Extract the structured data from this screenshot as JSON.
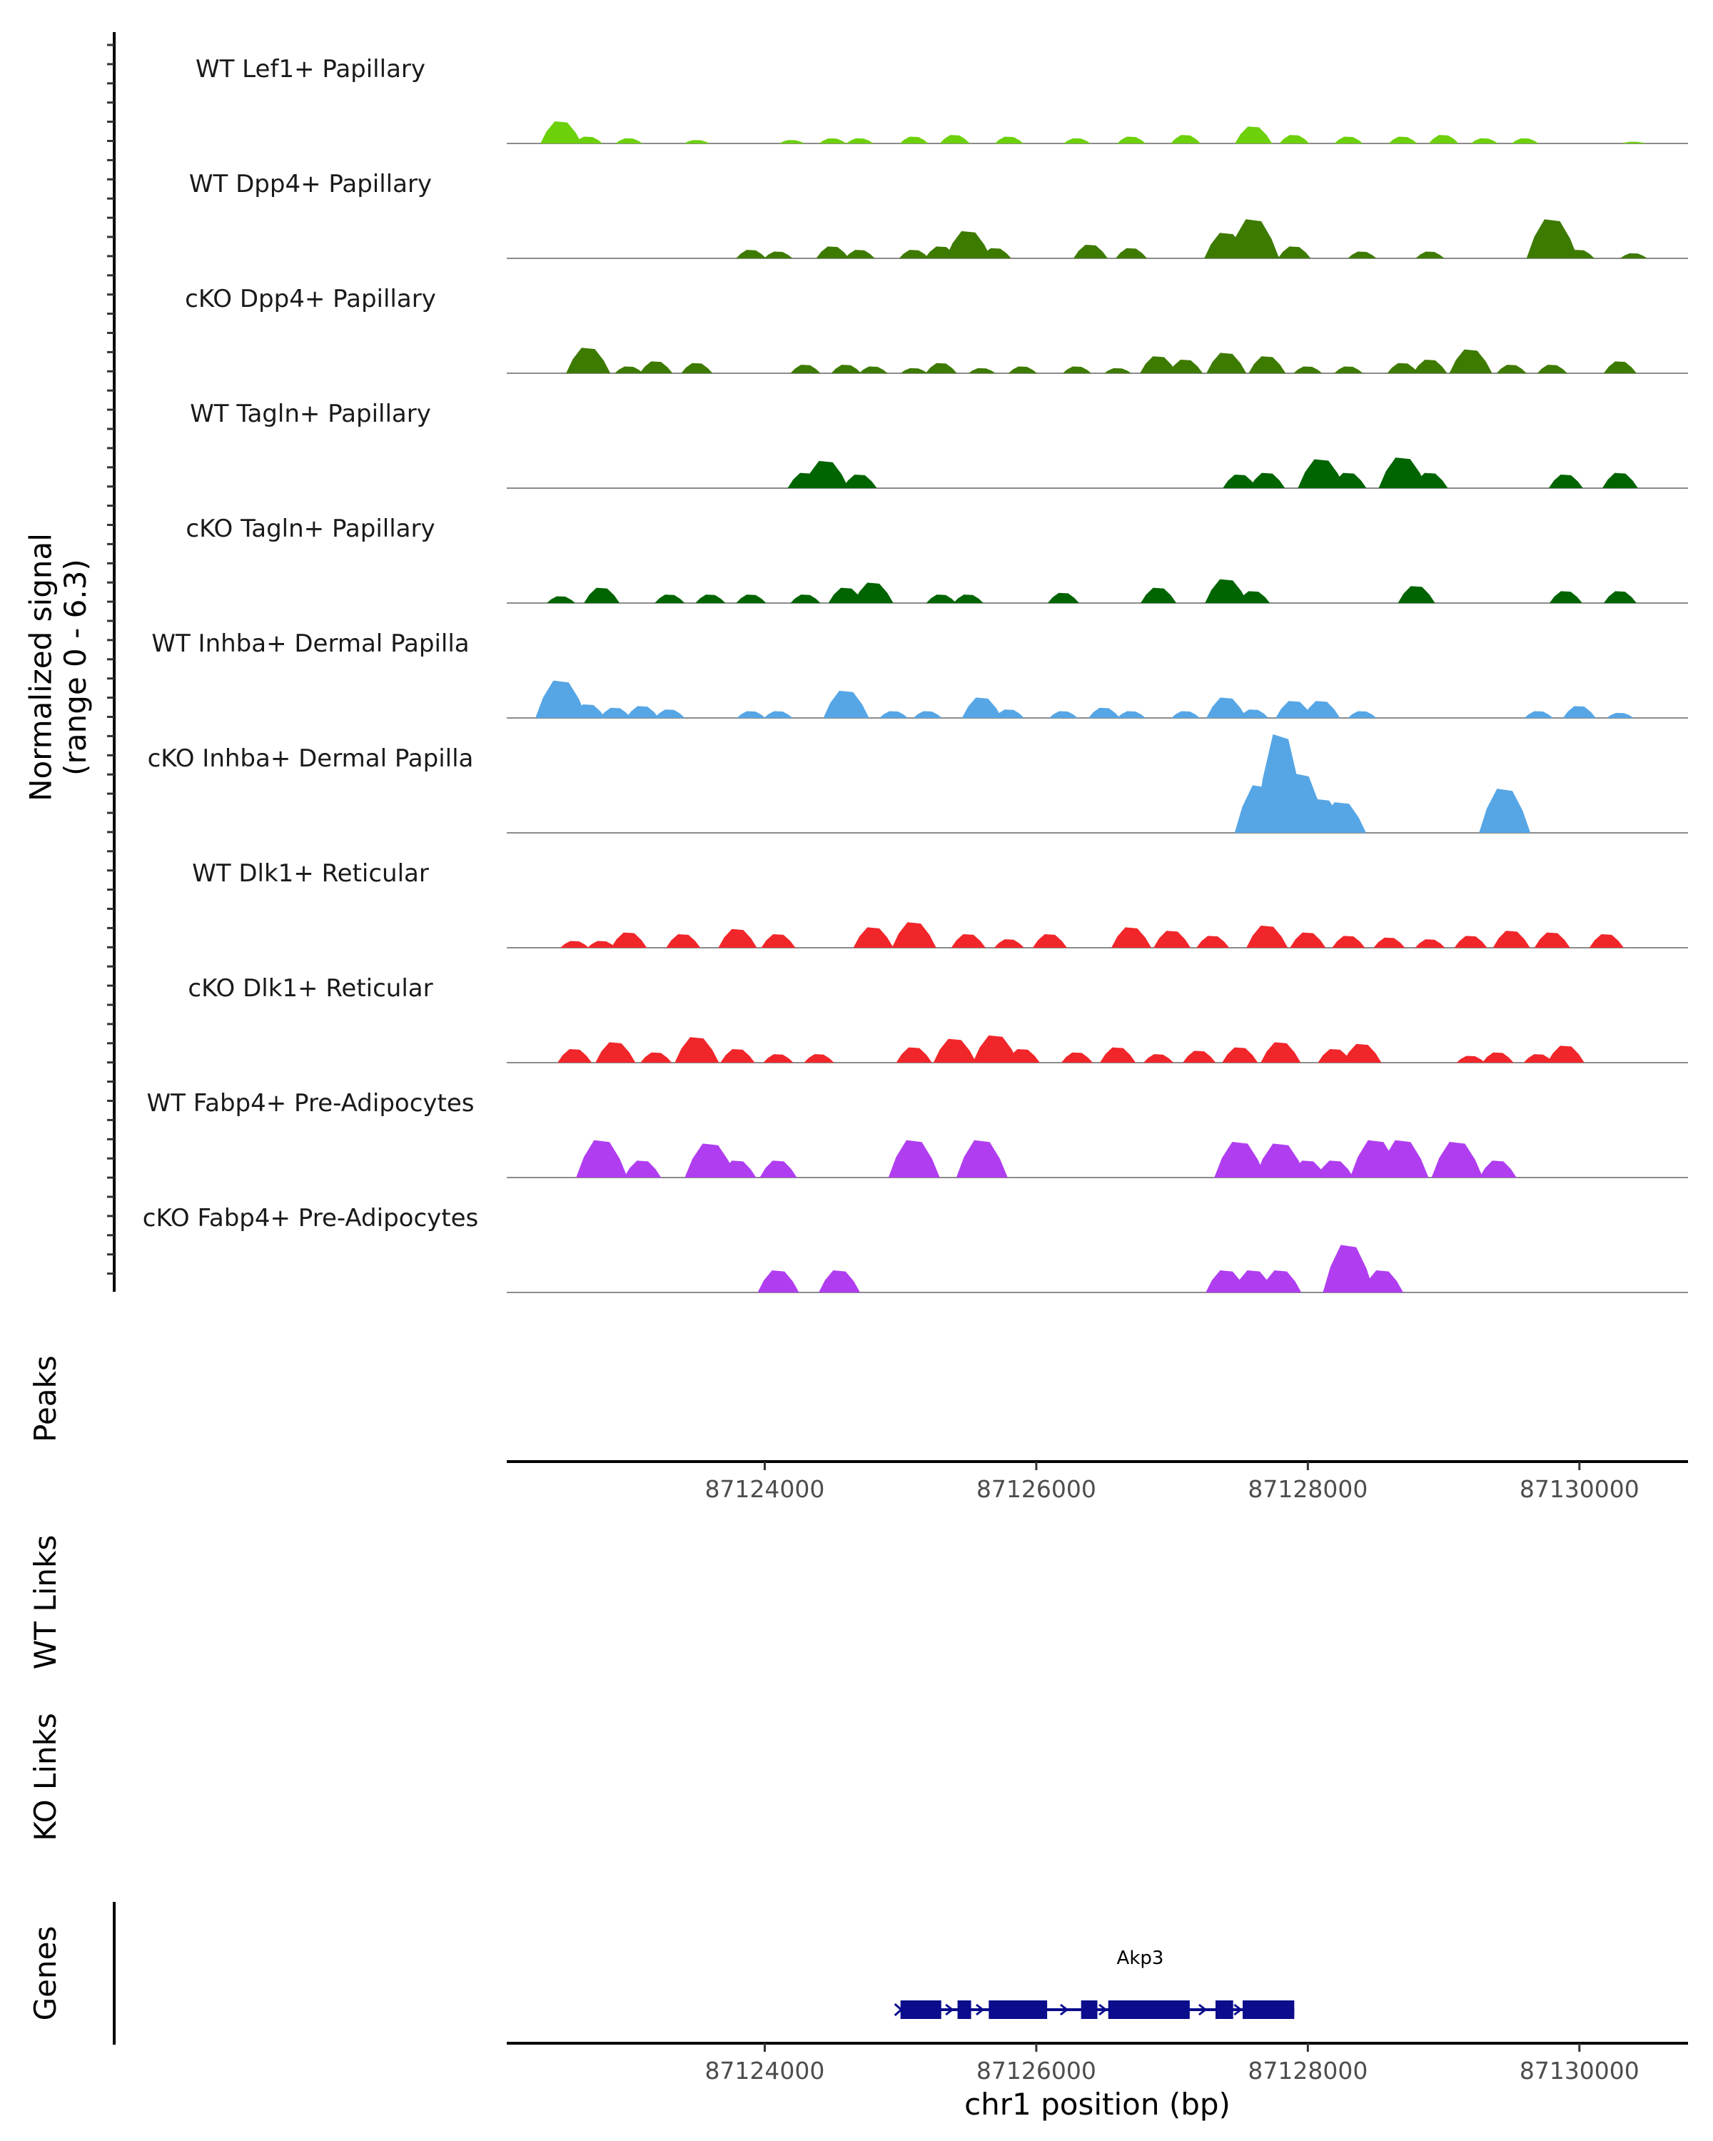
{
  "chart_data": {
    "type": "area",
    "title": "",
    "xlabel": "chr1 position (bp)",
    "ylabel": "Normalized signal\n(range 0 - 6.3)",
    "ylim": [
      0,
      6.3
    ],
    "xlim": [
      87122100,
      87130800
    ],
    "xticks": [
      87124000,
      87126000,
      87128000,
      87130000
    ],
    "tick_labels": [
      "87124000",
      "87126000",
      "87128000",
      "87130000"
    ],
    "tracks": [
      {
        "name": "WT Lef1+ Papillary",
        "color": "#6cd00a",
        "peaks": [
          [
            87122500,
            1.3
          ],
          [
            87122700,
            0.4
          ],
          [
            87123000,
            0.3
          ],
          [
            87123500,
            0.2
          ],
          [
            87124200,
            0.2
          ],
          [
            87124500,
            0.3
          ],
          [
            87124700,
            0.3
          ],
          [
            87125100,
            0.4
          ],
          [
            87125400,
            0.5
          ],
          [
            87125800,
            0.4
          ],
          [
            87126300,
            0.3
          ],
          [
            87126700,
            0.4
          ],
          [
            87127100,
            0.5
          ],
          [
            87127600,
            1.0
          ],
          [
            87127900,
            0.5
          ],
          [
            87128300,
            0.4
          ],
          [
            87128700,
            0.4
          ],
          [
            87129000,
            0.5
          ],
          [
            87129300,
            0.3
          ],
          [
            87129600,
            0.3
          ],
          [
            87130400,
            0.1
          ]
        ]
      },
      {
        "name": "WT Dpp4+ Papillary",
        "color": "#3d7a00",
        "peaks": [
          [
            87123900,
            0.5
          ],
          [
            87124100,
            0.4
          ],
          [
            87124500,
            0.7
          ],
          [
            87124700,
            0.5
          ],
          [
            87125100,
            0.5
          ],
          [
            87125300,
            0.7
          ],
          [
            87125500,
            1.6
          ],
          [
            87125700,
            0.6
          ],
          [
            87126400,
            0.8
          ],
          [
            87126700,
            0.6
          ],
          [
            87127400,
            1.5
          ],
          [
            87127600,
            2.3
          ],
          [
            87127900,
            0.7
          ],
          [
            87128400,
            0.4
          ],
          [
            87128900,
            0.4
          ],
          [
            87129800,
            2.3
          ],
          [
            87130000,
            0.5
          ],
          [
            87130400,
            0.3
          ]
        ]
      },
      {
        "name": "cKO Dpp4+ Papillary",
        "color": "#3d7a00",
        "peaks": [
          [
            87122700,
            1.5
          ],
          [
            87123000,
            0.4
          ],
          [
            87123200,
            0.7
          ],
          [
            87123500,
            0.6
          ],
          [
            87124300,
            0.5
          ],
          [
            87124600,
            0.5
          ],
          [
            87124800,
            0.4
          ],
          [
            87125100,
            0.3
          ],
          [
            87125300,
            0.6
          ],
          [
            87125600,
            0.3
          ],
          [
            87125900,
            0.4
          ],
          [
            87126300,
            0.4
          ],
          [
            87126600,
            0.3
          ],
          [
            87126900,
            1.0
          ],
          [
            87127100,
            0.8
          ],
          [
            87127400,
            1.2
          ],
          [
            87127700,
            1.0
          ],
          [
            87128000,
            0.4
          ],
          [
            87128300,
            0.4
          ],
          [
            87128700,
            0.6
          ],
          [
            87128900,
            0.8
          ],
          [
            87129200,
            1.4
          ],
          [
            87129500,
            0.5
          ],
          [
            87129800,
            0.5
          ],
          [
            87130300,
            0.7
          ]
        ]
      },
      {
        "name": "WT Tagln+ Papillary",
        "color": "#006400",
        "peaks": [
          [
            87124300,
            0.9
          ],
          [
            87124450,
            1.6
          ],
          [
            87124700,
            0.8
          ],
          [
            87127500,
            0.8
          ],
          [
            87127700,
            0.9
          ],
          [
            87128100,
            1.7
          ],
          [
            87128300,
            0.9
          ],
          [
            87128700,
            1.8
          ],
          [
            87128900,
            0.9
          ],
          [
            87129900,
            0.8
          ],
          [
            87130300,
            0.9
          ]
        ]
      },
      {
        "name": "cKO Tagln+ Papillary",
        "color": "#006400",
        "peaks": [
          [
            87122500,
            0.4
          ],
          [
            87122800,
            0.9
          ],
          [
            87123300,
            0.5
          ],
          [
            87123600,
            0.5
          ],
          [
            87123900,
            0.5
          ],
          [
            87124300,
            0.5
          ],
          [
            87124600,
            0.9
          ],
          [
            87124800,
            1.2
          ],
          [
            87125300,
            0.5
          ],
          [
            87125500,
            0.5
          ],
          [
            87126200,
            0.6
          ],
          [
            87126900,
            0.9
          ],
          [
            87127400,
            1.4
          ],
          [
            87127600,
            0.7
          ],
          [
            87128800,
            1.0
          ],
          [
            87129900,
            0.7
          ],
          [
            87130300,
            0.7
          ]
        ]
      },
      {
        "name": "WT Inhba+ Dermal Papilla",
        "color": "#56a6e6",
        "peaks": [
          [
            87122500,
            2.2
          ],
          [
            87122700,
            0.8
          ],
          [
            87122900,
            0.6
          ],
          [
            87123100,
            0.7
          ],
          [
            87123300,
            0.5
          ],
          [
            87123900,
            0.4
          ],
          [
            87124100,
            0.4
          ],
          [
            87124600,
            1.6
          ],
          [
            87124950,
            0.4
          ],
          [
            87125200,
            0.4
          ],
          [
            87125600,
            1.2
          ],
          [
            87125800,
            0.5
          ],
          [
            87126200,
            0.4
          ],
          [
            87126500,
            0.6
          ],
          [
            87126700,
            0.4
          ],
          [
            87127100,
            0.4
          ],
          [
            87127400,
            1.2
          ],
          [
            87127600,
            0.5
          ],
          [
            87127900,
            1.0
          ],
          [
            87128100,
            1.0
          ],
          [
            87128400,
            0.4
          ],
          [
            87129700,
            0.4
          ],
          [
            87130000,
            0.7
          ],
          [
            87130300,
            0.3
          ]
        ]
      },
      {
        "name": "cKO Inhba+ Dermal Papilla",
        "color": "#56a6e6",
        "peaks": [
          [
            87127650,
            2.8
          ],
          [
            87127800,
            5.8
          ],
          [
            87127950,
            3.5
          ],
          [
            87128100,
            2.0
          ],
          [
            87128250,
            1.8
          ],
          [
            87129450,
            2.6
          ]
        ]
      },
      {
        "name": "WT Dlk1+ Reticular",
        "color": "#f0262a",
        "peaks": [
          [
            87122600,
            0.4
          ],
          [
            87122800,
            0.4
          ],
          [
            87123000,
            0.9
          ],
          [
            87123400,
            0.8
          ],
          [
            87123800,
            1.1
          ],
          [
            87124100,
            0.8
          ],
          [
            87124800,
            1.2
          ],
          [
            87125100,
            1.5
          ],
          [
            87125500,
            0.8
          ],
          [
            87125800,
            0.5
          ],
          [
            87126100,
            0.8
          ],
          [
            87126700,
            1.2
          ],
          [
            87127000,
            1.0
          ],
          [
            87127300,
            0.7
          ],
          [
            87127700,
            1.3
          ],
          [
            87128000,
            0.9
          ],
          [
            87128300,
            0.7
          ],
          [
            87128600,
            0.6
          ],
          [
            87128900,
            0.5
          ],
          [
            87129200,
            0.7
          ],
          [
            87129500,
            1.0
          ],
          [
            87129800,
            0.9
          ],
          [
            87130200,
            0.8
          ]
        ]
      },
      {
        "name": "cKO Dlk1+ Reticular",
        "color": "#f0262a",
        "peaks": [
          [
            87122600,
            0.8
          ],
          [
            87122900,
            1.2
          ],
          [
            87123200,
            0.6
          ],
          [
            87123500,
            1.5
          ],
          [
            87123800,
            0.8
          ],
          [
            87124100,
            0.5
          ],
          [
            87124400,
            0.5
          ],
          [
            87125100,
            0.9
          ],
          [
            87125400,
            1.4
          ],
          [
            87125700,
            1.6
          ],
          [
            87125900,
            0.8
          ],
          [
            87126300,
            0.6
          ],
          [
            87126600,
            0.9
          ],
          [
            87126900,
            0.5
          ],
          [
            87127200,
            0.7
          ],
          [
            87127500,
            0.9
          ],
          [
            87127800,
            1.2
          ],
          [
            87128200,
            0.8
          ],
          [
            87128400,
            1.1
          ],
          [
            87129200,
            0.4
          ],
          [
            87129400,
            0.6
          ],
          [
            87129700,
            0.5
          ],
          [
            87129900,
            1.0
          ]
        ]
      },
      {
        "name": "WT Fabp4+ Pre-Adipocytes",
        "color": "#b03ef0",
        "peaks": [
          [
            87122800,
            2.2
          ],
          [
            87123100,
            1.0
          ],
          [
            87123600,
            2.0
          ],
          [
            87123800,
            1.0
          ],
          [
            87124100,
            1.0
          ],
          [
            87125100,
            2.2
          ],
          [
            87125600,
            2.2
          ],
          [
            87127500,
            2.1
          ],
          [
            87127800,
            2.0
          ],
          [
            87128000,
            1.0
          ],
          [
            87128200,
            1.0
          ],
          [
            87128500,
            2.2
          ],
          [
            87128700,
            2.2
          ],
          [
            87129100,
            2.1
          ],
          [
            87129400,
            1.0
          ]
        ]
      },
      {
        "name": "cKO Fabp4+ Pre-Adipocytes",
        "color": "#b03ef0",
        "peaks": [
          [
            87124100,
            1.3
          ],
          [
            87124550,
            1.3
          ],
          [
            87127400,
            1.3
          ],
          [
            87127600,
            1.3
          ],
          [
            87127800,
            1.3
          ],
          [
            87128300,
            2.8
          ],
          [
            87128550,
            1.3
          ]
        ]
      }
    ],
    "section_labels": {
      "peaks": "Peaks",
      "wt_links": "WT Links",
      "ko_links": "KO Links",
      "genes": "Genes"
    },
    "gene": {
      "name": "Akp3",
      "color": "#0b0d8c",
      "start": 87125000,
      "end": 87127900,
      "strand": "+",
      "exons": [
        [
          87125000,
          87125300
        ],
        [
          87125420,
          87125520
        ],
        [
          87125650,
          87126080
        ],
        [
          87126330,
          87126450
        ],
        [
          87126530,
          87127130
        ],
        [
          87127320,
          87127450
        ],
        [
          87127520,
          87127900
        ]
      ]
    }
  }
}
